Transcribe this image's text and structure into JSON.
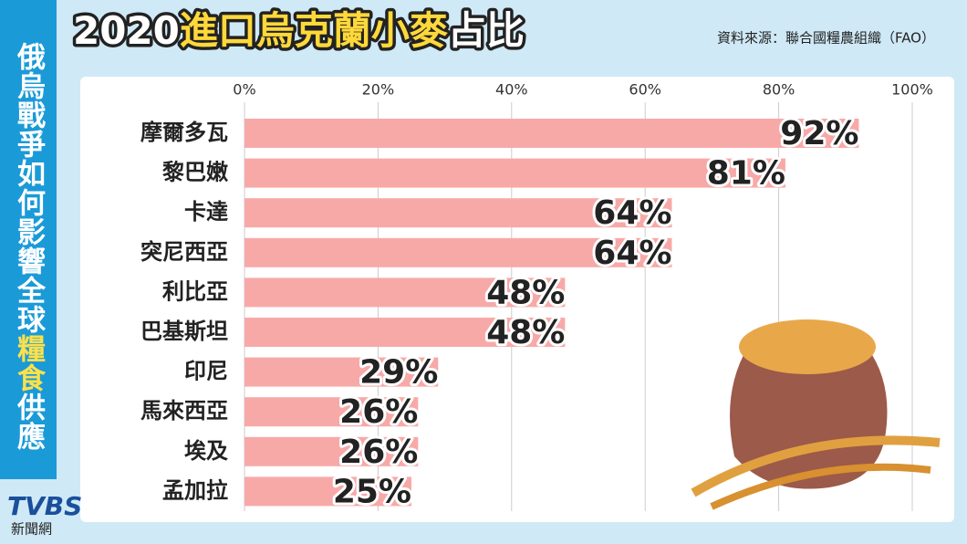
{
  "sidebar": [
    "俄烏戰爭如何影響全球",
    "糧食",
    "供應"
  ],
  "source": "資料來源：聯合國糧農組織（FAO）",
  "logo": {
    "brand": "TVBS",
    "sub": "新聞網"
  },
  "chart_data": {
    "type": "bar",
    "orientation": "horizontal",
    "title": [
      "2020",
      "進口烏克蘭小麥",
      "占比"
    ],
    "categories": [
      "摩爾多瓦",
      "黎巴嫩",
      "卡達",
      "突尼西亞",
      "利比亞",
      "巴基斯坦",
      "印尼",
      "馬來西亞",
      "埃及",
      "孟加拉"
    ],
    "values": [
      92,
      81,
      64,
      64,
      48,
      48,
      29,
      26,
      26,
      25
    ],
    "value_labels": [
      "92%",
      "81%",
      "64%",
      "64%",
      "48%",
      "48%",
      "29%",
      "26%",
      "26%",
      "25%"
    ],
    "color": "#f7a9a8",
    "xlim": [
      0,
      100
    ],
    "xticks": [
      {
        "value": 0,
        "label": "0%"
      },
      {
        "value": 20,
        "label": "20%"
      },
      {
        "value": 40,
        "label": "40%"
      },
      {
        "value": 60,
        "label": "60%"
      },
      {
        "value": 80,
        "label": "80%"
      },
      {
        "value": 100,
        "label": "100%"
      }
    ],
    "grid": true
  }
}
